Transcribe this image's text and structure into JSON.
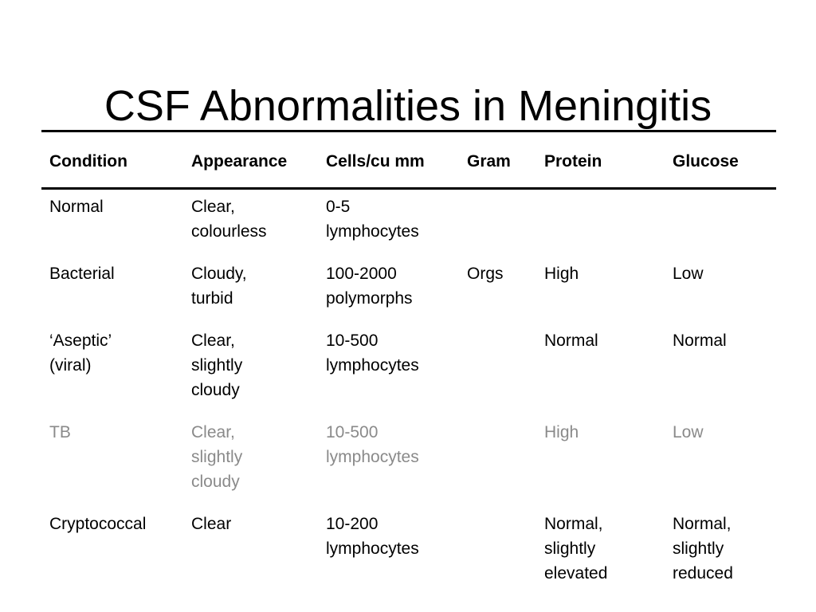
{
  "title": "CSF Abnormalities in Meningitis",
  "table": {
    "headers": [
      "Condition",
      "Appearance",
      "Cells/cu mm",
      "Gram",
      "Protein",
      "Glucose"
    ],
    "rows": [
      {
        "cells": [
          "Normal",
          "Clear,\ncolourless",
          "0-5\nlymphocytes",
          "",
          "",
          ""
        ],
        "muted": false
      },
      {
        "cells": [
          "Bacterial",
          "Cloudy,\nturbid",
          "100-2000\npolymorphs",
          "Orgs",
          "High",
          "Low"
        ],
        "muted": false
      },
      {
        "cells": [
          "‘Aseptic’\n(viral)",
          "Clear,\nslightly\ncloudy",
          "10-500\nlymphocytes",
          "",
          "Normal",
          "Normal"
        ],
        "muted": false
      },
      {
        "cells": [
          "TB",
          "Clear,\nslightly\ncloudy",
          "10-500\nlymphocytes",
          "",
          "High",
          "Low"
        ],
        "muted": true
      },
      {
        "cells": [
          "Cryptococcal",
          "Clear",
          "10-200\nlymphocytes",
          "",
          "Normal,\nslightly\nelevated",
          "Normal,\nslightly\nreduced"
        ],
        "muted": false
      }
    ],
    "muted_color": "#8a8a8a"
  }
}
